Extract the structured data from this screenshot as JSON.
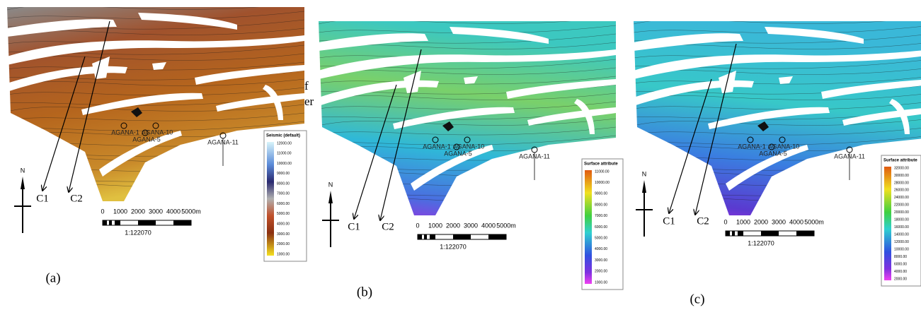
{
  "panels": [
    {
      "label": "(a)",
      "wells": [
        "AGANA-11",
        "AGANA-1",
        "AGANA-5",
        "AGANA-10"
      ],
      "arrows": [
        "C1",
        "C2"
      ],
      "north": "N",
      "scale_ticks": [
        "0",
        "1000",
        "2000",
        "3000",
        "4000",
        "5000m"
      ],
      "scale_ratio": "1:122070",
      "legend": {
        "title": "Seismic (default)",
        "labels": [
          "12000.00",
          "11000.00",
          "10000.00",
          "9000.00",
          "8000.00",
          "7000.00",
          "6000.00",
          "5000.00",
          "4000.00",
          "3000.00",
          "2000.00",
          "1000.00"
        ]
      }
    },
    {
      "label": "(b)",
      "wells": [
        "AGANA-11",
        "AGANA-1",
        "AGANA-5",
        "AGANA-10"
      ],
      "arrows": [
        "C1",
        "C2"
      ],
      "north": "N",
      "scale_ticks": [
        "0",
        "1000",
        "2000",
        "3000",
        "4000",
        "5000m"
      ],
      "scale_ratio": "1:122070",
      "legend": {
        "title": "Surface attribute",
        "labels": [
          "11000.00",
          "10000.00",
          "9000.00",
          "8000.00",
          "7000.00",
          "6000.00",
          "5000.00",
          "4000.00",
          "3000.00",
          "2000.00",
          "1000.00"
        ]
      }
    },
    {
      "label": "(c)",
      "wells": [
        "AGANA-11",
        "AGANA-1",
        "AGANA-5",
        "AGANA-10"
      ],
      "arrows": [
        "C1",
        "C2"
      ],
      "north": "N",
      "scale_ticks": [
        "0",
        "1000",
        "2000",
        "3000",
        "4000",
        "5000m"
      ],
      "scale_ratio": "1:122070",
      "legend": {
        "title": "Surface attribute",
        "labels": [
          "32000.00",
          "30000.00",
          "28000.00",
          "26000.00",
          "24000.00",
          "22000.00",
          "20000.00",
          "18000.00",
          "16000.00",
          "14000.00",
          "12000.00",
          "10000.00",
          "8000.00",
          "6000.00",
          "4000.00",
          "2000.00"
        ]
      }
    }
  ],
  "fragments": [
    "f",
    "er"
  ]
}
